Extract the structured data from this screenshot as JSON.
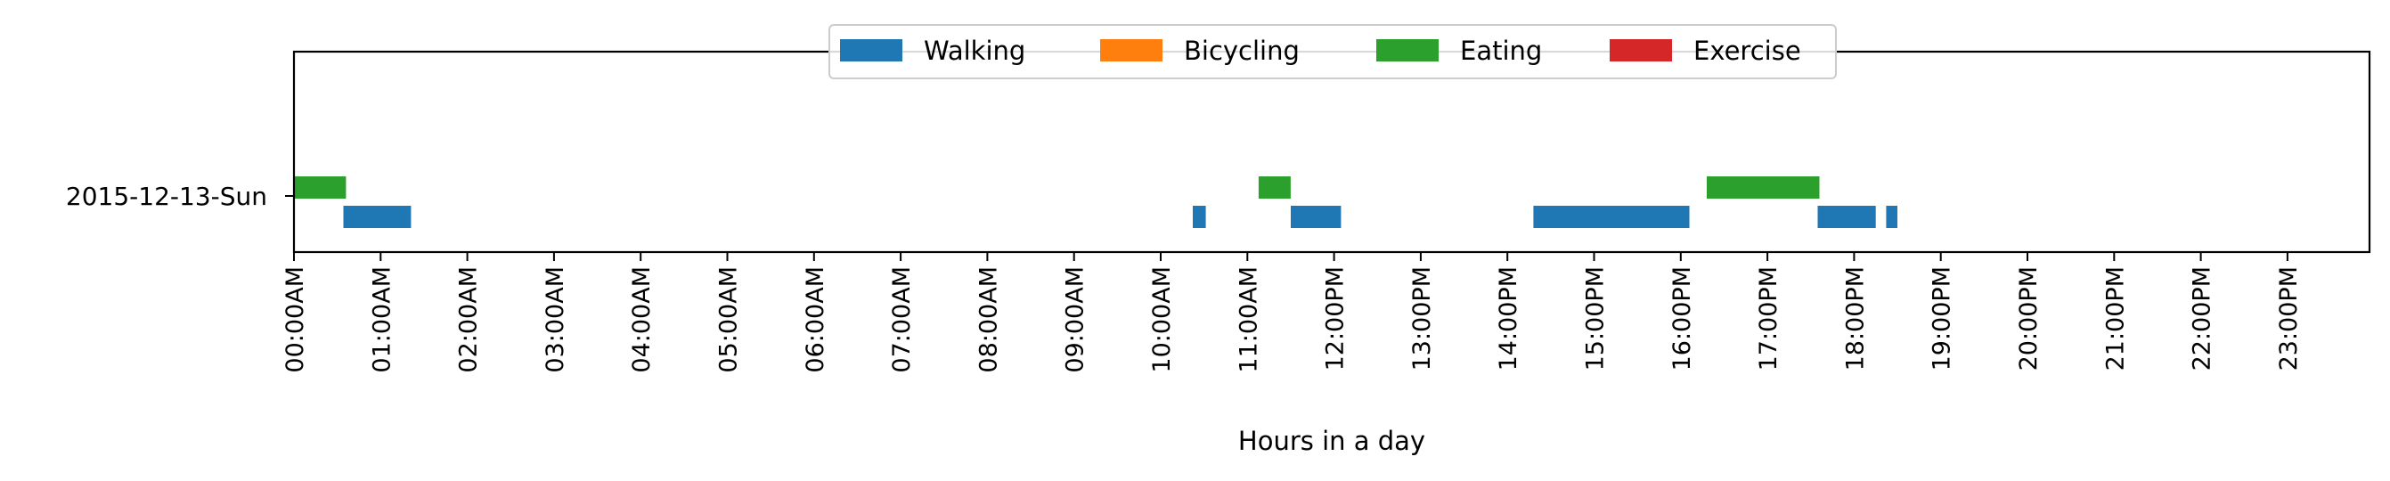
{
  "chart_data": {
    "type": "bar",
    "orientation": "horizontal-timeline",
    "xlabel": "Hours in a day",
    "ylabel": "",
    "xlim": [
      0,
      24
    ],
    "x_ticks": [
      "00:00AM",
      "01:00AM",
      "02:00AM",
      "03:00AM",
      "04:00AM",
      "05:00AM",
      "06:00AM",
      "07:00AM",
      "08:00AM",
      "09:00AM",
      "10:00AM",
      "11:00AM",
      "12:00PM",
      "13:00PM",
      "14:00PM",
      "15:00PM",
      "16:00PM",
      "17:00PM",
      "18:00PM",
      "19:00PM",
      "20:00PM",
      "21:00PM",
      "22:00PM",
      "23:00PM"
    ],
    "categories": [
      "2015-12-13-Sun"
    ],
    "grid": false,
    "legend_placement": "top-center",
    "series": [
      {
        "name": "Walking",
        "color": "#1f77b4",
        "segments": [
          [
            0.57,
            1.35
          ],
          [
            10.37,
            10.52
          ],
          [
            11.5,
            12.08
          ],
          [
            14.3,
            16.1
          ],
          [
            17.58,
            18.25
          ],
          [
            18.37,
            18.5
          ]
        ]
      },
      {
        "name": "Bicycling",
        "color": "#ff7f0e",
        "segments": []
      },
      {
        "name": "Eating",
        "color": "#2ca02c",
        "segments": [
          [
            0.0,
            0.6
          ],
          [
            11.13,
            11.5
          ],
          [
            16.3,
            17.6
          ]
        ]
      },
      {
        "name": "Exercise",
        "color": "#d62728",
        "segments": []
      }
    ]
  }
}
